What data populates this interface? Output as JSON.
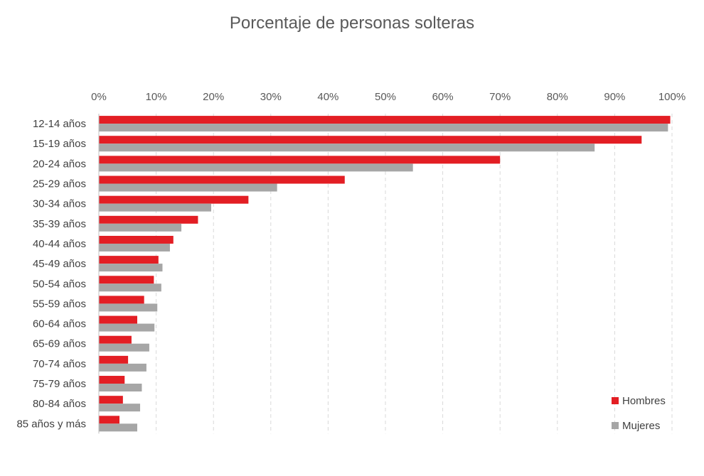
{
  "chart_data": {
    "type": "bar",
    "orientation": "horizontal",
    "title": "Porcentaje de personas solteras",
    "xlabel": "",
    "ylabel": "",
    "xlim": [
      0,
      100
    ],
    "x_ticks": [
      "0%",
      "10%",
      "20%",
      "30%",
      "40%",
      "50%",
      "60%",
      "70%",
      "80%",
      "90%",
      "100%"
    ],
    "x_axis_position": "top",
    "grid": "vertical dashed",
    "legend_position": "bottom-right",
    "categories": [
      "12-14 años",
      "15-19 años",
      "20-24 años",
      "25-29 años",
      "30-34 años",
      "35-39 años",
      "40-44 años",
      "45-49 años",
      "50-54 años",
      "55-59 años",
      "60-64 años",
      "65-69 años",
      "70-74 años",
      "75-79 años",
      "80-84 años",
      "85 años y más"
    ],
    "series": [
      {
        "name": "Hombres",
        "color": "#e31e24",
        "values": [
          99.7,
          94.7,
          70.0,
          42.9,
          26.1,
          17.3,
          13.0,
          10.4,
          9.6,
          7.9,
          6.7,
          5.7,
          5.1,
          4.5,
          4.2,
          3.6
        ]
      },
      {
        "name": "Mujeres",
        "color": "#a6a6a6",
        "values": [
          99.3,
          86.5,
          54.8,
          31.1,
          19.6,
          14.4,
          12.4,
          11.1,
          10.9,
          10.2,
          9.7,
          8.8,
          8.3,
          7.5,
          7.2,
          6.7
        ]
      }
    ]
  }
}
